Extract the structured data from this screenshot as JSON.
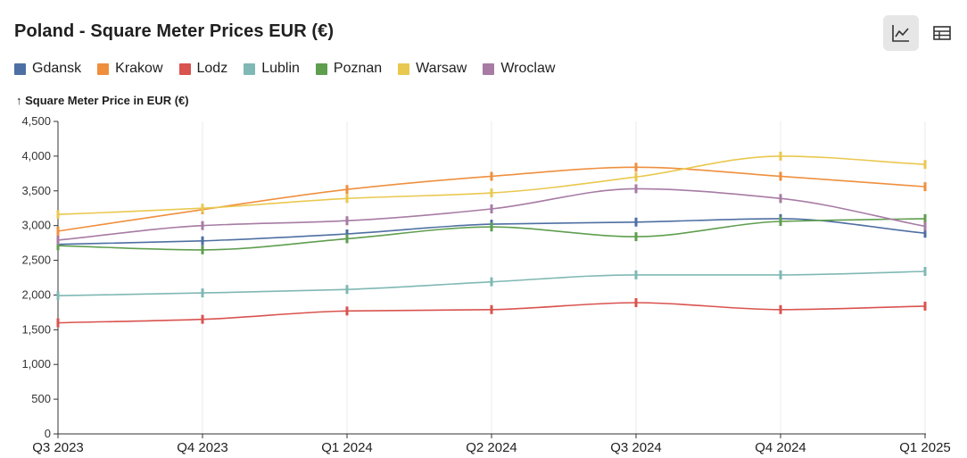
{
  "chart_data": {
    "type": "line",
    "title": "Poland - Square Meter Prices EUR (€)",
    "ylabel": "↑ Square Meter Price in EUR (€)",
    "xlabel": "",
    "categories": [
      "Q3 2023",
      "Q4 2023",
      "Q1 2024",
      "Q2 2024",
      "Q3 2024",
      "Q4 2024",
      "Q1 2025"
    ],
    "ylim": [
      0,
      4500
    ],
    "yticks": [
      0,
      500,
      1000,
      1500,
      2000,
      2500,
      3000,
      3500,
      4000,
      4500
    ],
    "ytick_labels": [
      "0",
      "500",
      "1,000",
      "1,500",
      "2,000",
      "2,500",
      "3,000",
      "3,500",
      "4,000",
      "4,500"
    ],
    "grid": "vertical",
    "legend": "top-left",
    "series": [
      {
        "name": "Gdansk",
        "color": "#4e6fa3",
        "values": [
          2730,
          2780,
          2880,
          3020,
          3050,
          3100,
          2890
        ]
      },
      {
        "name": "Krakow",
        "color": "#ef8f3e",
        "values": [
          2920,
          3230,
          3520,
          3710,
          3840,
          3710,
          3560
        ]
      },
      {
        "name": "Lodz",
        "color": "#d9534f",
        "values": [
          1600,
          1650,
          1770,
          1790,
          1890,
          1790,
          1840
        ]
      },
      {
        "name": "Lublin",
        "color": "#7fb8b4",
        "values": [
          1990,
          2030,
          2080,
          2190,
          2290,
          2290,
          2340
        ]
      },
      {
        "name": "Poznan",
        "color": "#5f9e4f",
        "values": [
          2710,
          2650,
          2810,
          2980,
          2840,
          3060,
          3100
        ]
      },
      {
        "name": "Warsaw",
        "color": "#e9c84f",
        "values": [
          3160,
          3250,
          3390,
          3470,
          3700,
          4000,
          3880
        ]
      },
      {
        "name": "Wroclaw",
        "color": "#a77ba4",
        "values": [
          2790,
          3000,
          3070,
          3240,
          3530,
          3390,
          2990
        ]
      }
    ]
  },
  "toolbar": {
    "chart_view_icon": "line-chart-icon",
    "table_view_icon": "table-icon"
  }
}
